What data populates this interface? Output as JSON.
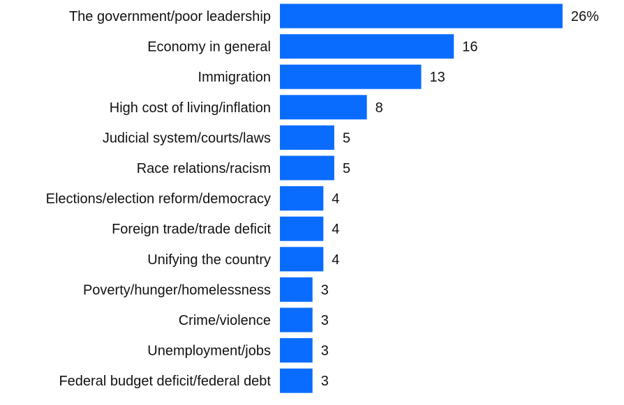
{
  "chart_data": {
    "type": "bar",
    "orientation": "horizontal",
    "title": "",
    "xlabel": "",
    "ylabel": "",
    "unit_suffix_first": "%",
    "grid": false,
    "bar_color": "#0a6cff",
    "xlim": [
      0,
      26
    ],
    "categories": [
      "The government/poor leadership",
      "Economy in general",
      "Immigration",
      "High cost of living/inflation",
      "Judicial system/courts/laws",
      "Race relations/racism",
      "Elections/election reform/democracy",
      "Foreign trade/trade deficit",
      "Unifying the country",
      "Poverty/hunger/homelessness",
      "Crime/violence",
      "Unemployment/jobs",
      "Federal budget deficit/federal debt"
    ],
    "values": [
      26,
      16,
      13,
      8,
      5,
      5,
      4,
      4,
      4,
      3,
      3,
      3,
      3
    ],
    "value_labels": [
      "26%",
      "16",
      "13",
      "8",
      "5",
      "5",
      "4",
      "4",
      "4",
      "3",
      "3",
      "3",
      "3"
    ]
  }
}
